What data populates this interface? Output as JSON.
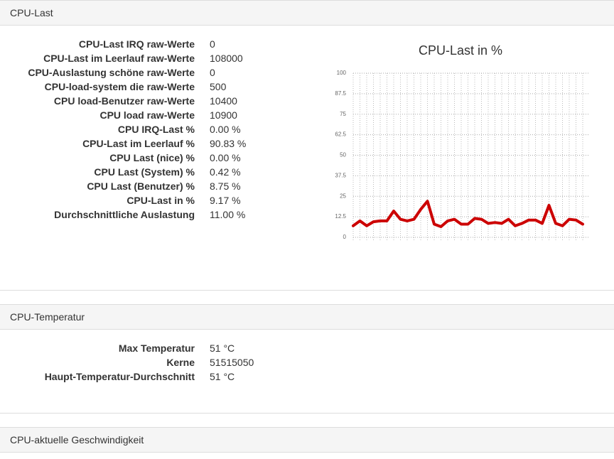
{
  "panels": [
    {
      "heading": "CPU-Last",
      "rows": [
        [
          "CPU-Last IRQ raw-Werte",
          "0"
        ],
        [
          "CPU-Last im Leerlauf raw-Werte",
          "108000"
        ],
        [
          "CPU-Auslastung schöne raw-Werte",
          "0"
        ],
        [
          "CPU-load-system die raw-Werte",
          "500"
        ],
        [
          "CPU load-Benutzer raw-Werte",
          "10400"
        ],
        [
          "CPU load raw-Werte",
          "10900"
        ],
        [
          "CPU IRQ-Last %",
          "0.00 %"
        ],
        [
          "CPU-Last im Leerlauf %",
          "90.83 %"
        ],
        [
          "CPU Last (nice) %",
          "0.00 %"
        ],
        [
          "CPU Last (System) %",
          "0.42 %"
        ],
        [
          "CPU Last (Benutzer) %",
          "8.75 %"
        ],
        [
          "CPU-Last in %",
          "9.17 %"
        ],
        [
          "Durchschnittliche Auslastung",
          "11.00 %"
        ]
      ]
    },
    {
      "heading": "CPU-Temperatur",
      "rows": [
        [
          "Max Temperatur",
          "51 °C"
        ],
        [
          "Kerne",
          "51515050"
        ],
        [
          "Haupt-Temperatur-Durchschnitt",
          "51 °C"
        ]
      ]
    },
    {
      "heading": "CPU-aktuelle Geschwindigkeit",
      "rows": []
    }
  ],
  "chart_data": {
    "type": "line",
    "title": "CPU-Last in %",
    "color": "#cc0000",
    "values": [
      7,
      10,
      7,
      9.5,
      10,
      10,
      16,
      11,
      10,
      11,
      17,
      22,
      8,
      6.5,
      10,
      11,
      8,
      8,
      11.5,
      11,
      8.5,
      9,
      8.5,
      11,
      7,
      8.5,
      10.5,
      10.5,
      8.5,
      19.5,
      8.5,
      7,
      11,
      10.5,
      8
    ],
    "ylim": [
      0,
      100
    ],
    "yticks": [
      0,
      12.5,
      25,
      37.5,
      50,
      62.5,
      75,
      87.5,
      100
    ],
    "grid": true
  }
}
